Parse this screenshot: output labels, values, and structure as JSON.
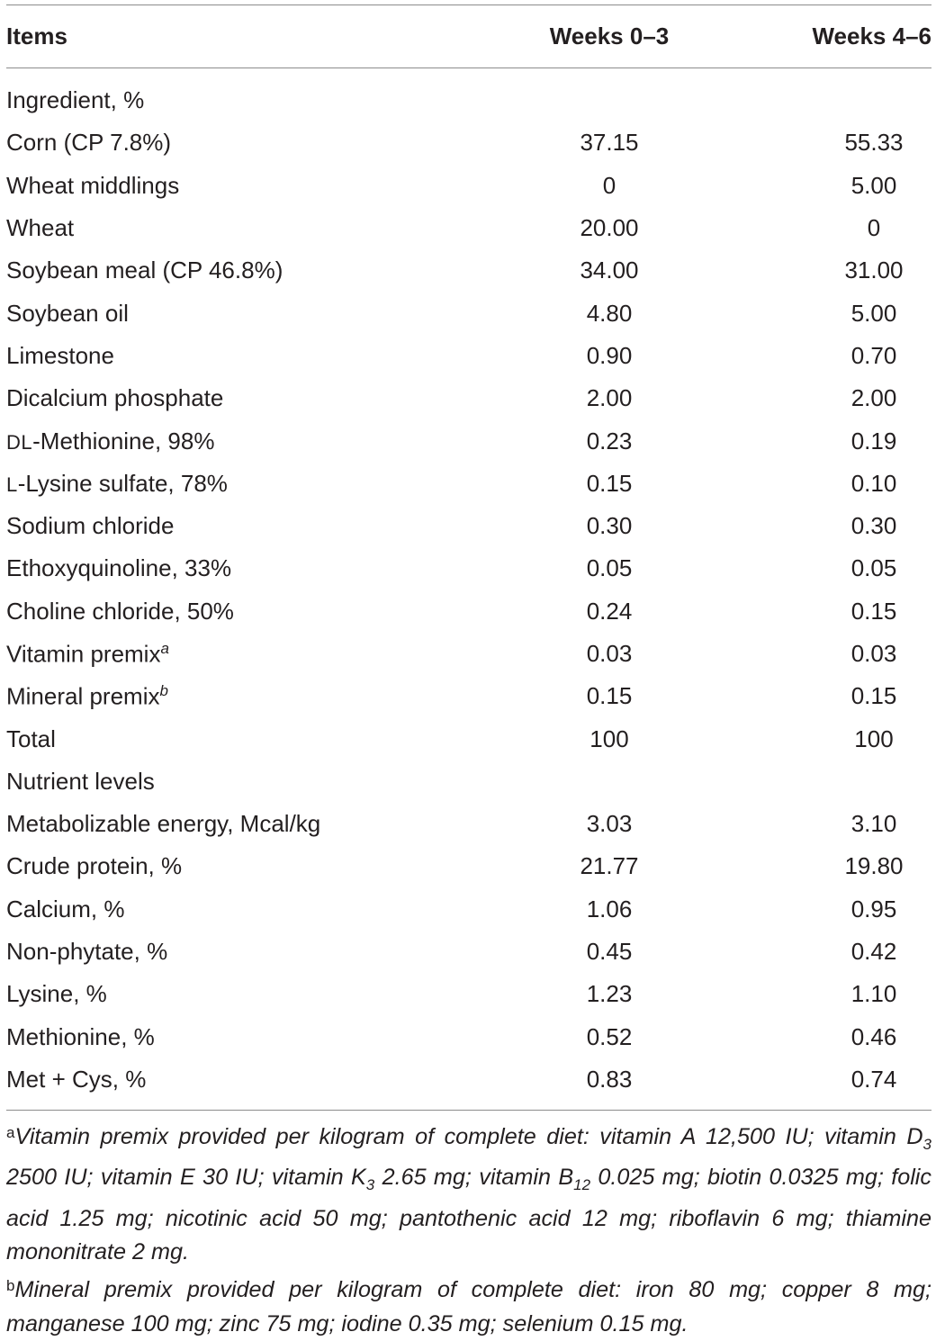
{
  "table": {
    "headers": [
      "Items",
      "Weeks 0–3",
      "Weeks 4–6"
    ],
    "rows": [
      {
        "item": "Ingredient, %",
        "w03": "",
        "w46": ""
      },
      {
        "item": "Corn (CP 7.8%)",
        "w03": "37.15",
        "w46": "55.33"
      },
      {
        "item": "Wheat middlings",
        "w03": "0",
        "w46": "5.00"
      },
      {
        "item": "Wheat",
        "w03": "20.00",
        "w46": "0"
      },
      {
        "item": "Soybean meal (CP 46.8%)",
        "w03": "34.00",
        "w46": "31.00"
      },
      {
        "item": "Soybean oil",
        "w03": "4.80",
        "w46": "5.00"
      },
      {
        "item": "Limestone",
        "w03": "0.90",
        "w46": "0.70"
      },
      {
        "item": "Dicalcium phosphate",
        "w03": "2.00",
        "w46": "2.00"
      },
      {
        "item_prefix": "DL",
        "item": "-Methionine, 98%",
        "w03": "0.23",
        "w46": "0.19"
      },
      {
        "item_prefix": "L",
        "item": "-Lysine sulfate, 78%",
        "w03": "0.15",
        "w46": "0.10"
      },
      {
        "item": "Sodium chloride",
        "w03": "0.30",
        "w46": "0.30"
      },
      {
        "item": "Ethoxyquinoline, 33%",
        "w03": "0.05",
        "w46": "0.05"
      },
      {
        "item": "Choline chloride, 50%",
        "w03": "0.24",
        "w46": "0.15"
      },
      {
        "item": "Vitamin premix",
        "item_sup": "a",
        "w03": "0.03",
        "w46": "0.03"
      },
      {
        "item": "Mineral premix",
        "item_sup": "b",
        "w03": "0.15",
        "w46": "0.15"
      },
      {
        "item": "Total",
        "w03": "100",
        "w46": "100"
      },
      {
        "item": "Nutrient levels",
        "w03": "",
        "w46": ""
      },
      {
        "item": "Metabolizable energy, Mcal/kg",
        "w03": "3.03",
        "w46": "3.10"
      },
      {
        "item": "Crude protein, %",
        "w03": "21.77",
        "w46": "19.80"
      },
      {
        "item": "Calcium, %",
        "w03": "1.06",
        "w46": "0.95"
      },
      {
        "item": "Non-phytate, %",
        "w03": "0.45",
        "w46": "0.42"
      },
      {
        "item": "Lysine, %",
        "w03": "1.23",
        "w46": "1.10"
      },
      {
        "item": "Methionine, %",
        "w03": "0.52",
        "w46": "0.46"
      },
      {
        "item": "Met + Cys, %",
        "w03": "0.83",
        "w46": "0.74"
      }
    ]
  },
  "footnotes": {
    "a": {
      "mark": "a",
      "part1": "Vitamin premix provided per kilogram of complete diet: vitamin A 12,500 IU; vitamin D",
      "sub1": "3",
      "part2": " 2500 IU; vitamin E 30 IU; vitamin K",
      "sub2": "3",
      "part3": " 2.65 mg; vitamin B",
      "sub3": "12",
      "part4": " 0.025 mg; biotin 0.0325 mg; folic acid 1.25 mg; nicotinic acid 50 mg; pantothenic acid 12 mg; riboflavin 6 mg; thiamine mononitrate 2 mg."
    },
    "b": {
      "mark": "b",
      "text": "Mineral premix provided per kilogram of complete diet: iron 80 mg; copper 8 mg; manganese 100 mg; zinc 75 mg; iodine 0.35 mg; selenium 0.15 mg."
    }
  }
}
